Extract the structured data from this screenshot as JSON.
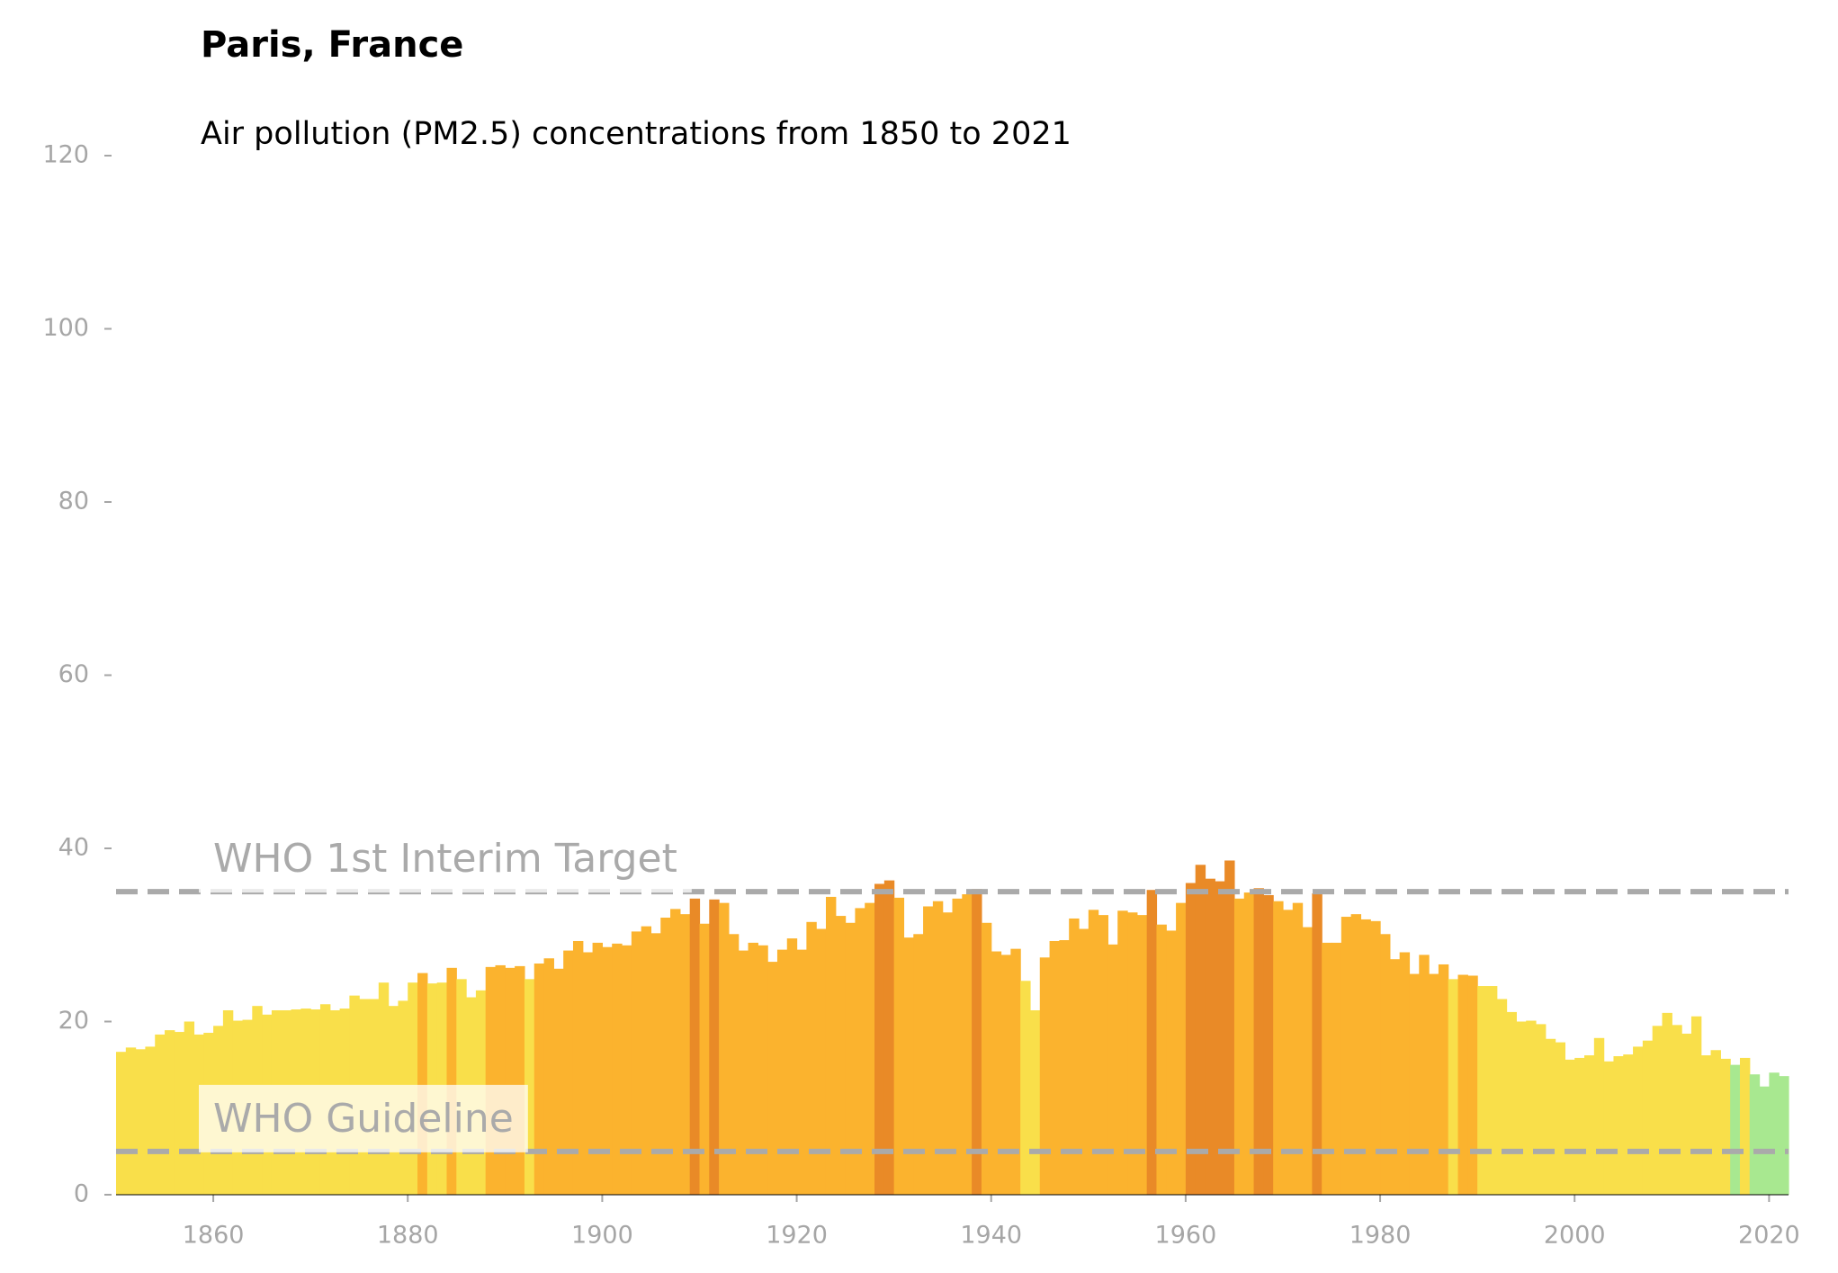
{
  "chart_data": {
    "type": "bar",
    "title": "Paris, France",
    "subtitle": "Air pollution (PM2.5) concentrations from 1850 to 2021",
    "x_start": 1850,
    "values": [
      16.5,
      17,
      16.8,
      17.1,
      18.5,
      19,
      18.8,
      20,
      18.5,
      18.7,
      19.5,
      21.3,
      20.1,
      20.2,
      21.8,
      20.8,
      21.3,
      21.3,
      21.4,
      21.5,
      21.4,
      22,
      21.3,
      21.5,
      23,
      22.6,
      22.6,
      24.5,
      21.8,
      22.4,
      24.5,
      25.6,
      24.4,
      24.5,
      26.2,
      24.9,
      22.8,
      23.6,
      26.3,
      26.5,
      26.2,
      26.4,
      24.9,
      26.7,
      27.3,
      26.1,
      28.2,
      29.3,
      28,
      29.1,
      28.6,
      29,
      28.8,
      30.4,
      31,
      30.2,
      32,
      33,
      32.4,
      34.2,
      31.3,
      34.1,
      33.7,
      30.1,
      28.2,
      29.1,
      28.8,
      26.9,
      28.3,
      29.6,
      28.3,
      31.5,
      30.7,
      34.4,
      32.2,
      31.4,
      33.1,
      33.7,
      35.9,
      36.3,
      34.3,
      29.7,
      30.1,
      33.3,
      33.9,
      32.6,
      34.2,
      34.7,
      35.3,
      31.4,
      28.1,
      27.7,
      28.4,
      24.7,
      21.3,
      27.4,
      29.3,
      29.4,
      31.9,
      30.7,
      32.9,
      32.3,
      28.9,
      32.8,
      32.6,
      32.3,
      35.2,
      31.2,
      30.5,
      33.7,
      36,
      38.1,
      36.5,
      36.2,
      38.6,
      34.2,
      34.9,
      35.4,
      34.6,
      33.9,
      32.9,
      33.7,
      30.9,
      34.8,
      29.1,
      29.1,
      32.1,
      32.4,
      31.8,
      31.6,
      30.1,
      27.2,
      28,
      25.5,
      27.7,
      25.5,
      26.6,
      24.9,
      25.4,
      25.3,
      24.1,
      24.1,
      22.6,
      21.1,
      20,
      20.1,
      19.7,
      18,
      17.6,
      15.6,
      15.8,
      16.1,
      18.1,
      15.4,
      16,
      16.2,
      17.1,
      17.8,
      19.5,
      21,
      19.6,
      18.6,
      20.6,
      16.1,
      16.7,
      15.7,
      15,
      15.8,
      13.9,
      12.5,
      14.1,
      13.7
    ],
    "colors": [
      "#f9df4a",
      "#f9df4a",
      "#f9df4a",
      "#f9df4a",
      "#f9df4a",
      "#f9df4a",
      "#f9df4a",
      "#f9df4a",
      "#f9df4a",
      "#f9df4a",
      "#f9df4a",
      "#f9df4a",
      "#f9df4a",
      "#f9df4a",
      "#f9df4a",
      "#f9df4a",
      "#f9df4a",
      "#f9df4a",
      "#f9df4a",
      "#f9df4a",
      "#f9df4a",
      "#f9df4a",
      "#f9df4a",
      "#f9df4a",
      "#f9df4a",
      "#f9df4a",
      "#f9df4a",
      "#f9df4a",
      "#f9df4a",
      "#f9df4a",
      "#f9df4a",
      "#fbb32e",
      "#f9df4a",
      "#f9df4a",
      "#fbb32e",
      "#f9df4a",
      "#f9df4a",
      "#f9df4a",
      "#fbb32e",
      "#fbb32e",
      "#fbb32e",
      "#fbb32e",
      "#f9df4a",
      "#fbb32e",
      "#fbb32e",
      "#fbb32e",
      "#fbb32e",
      "#fbb32e",
      "#fbb32e",
      "#fbb32e",
      "#fbb32e",
      "#fbb32e",
      "#fbb32e",
      "#fbb32e",
      "#fbb32e",
      "#fbb32e",
      "#fbb32e",
      "#fbb32e",
      "#fbb32e",
      "#e98a27",
      "#fbb32e",
      "#e98a27",
      "#fbb32e",
      "#fbb32e",
      "#fbb32e",
      "#fbb32e",
      "#fbb32e",
      "#fbb32e",
      "#fbb32e",
      "#fbb32e",
      "#fbb32e",
      "#fbb32e",
      "#fbb32e",
      "#fbb32e",
      "#fbb32e",
      "#fbb32e",
      "#fbb32e",
      "#fbb32e",
      "#e98a27",
      "#e98a27",
      "#fbb32e",
      "#fbb32e",
      "#fbb32e",
      "#fbb32e",
      "#fbb32e",
      "#fbb32e",
      "#fbb32e",
      "#fbb32e",
      "#e98a27",
      "#fbb32e",
      "#fbb32e",
      "#fbb32e",
      "#fbb32e",
      "#f9df4a",
      "#f9df4a",
      "#fbb32e",
      "#fbb32e",
      "#fbb32e",
      "#fbb32e",
      "#fbb32e",
      "#fbb32e",
      "#fbb32e",
      "#fbb32e",
      "#fbb32e",
      "#fbb32e",
      "#fbb32e",
      "#e98a27",
      "#fbb32e",
      "#fbb32e",
      "#fbb32e",
      "#e98a27",
      "#e98a27",
      "#e98a27",
      "#e98a27",
      "#e98a27",
      "#fbb32e",
      "#fbb32e",
      "#e98a27",
      "#e98a27",
      "#fbb32e",
      "#fbb32e",
      "#fbb32e",
      "#fbb32e",
      "#e98a27",
      "#fbb32e",
      "#fbb32e",
      "#fbb32e",
      "#fbb32e",
      "#fbb32e",
      "#fbb32e",
      "#fbb32e",
      "#fbb32e",
      "#fbb32e",
      "#fbb32e",
      "#fbb32e",
      "#fbb32e",
      "#fbb32e",
      "#f9df4a",
      "#fbb32e",
      "#fbb32e",
      "#f9df4a",
      "#f9df4a",
      "#f9df4a",
      "#f9df4a",
      "#f9df4a",
      "#f9df4a",
      "#f9df4a",
      "#f9df4a",
      "#f9df4a",
      "#f9df4a",
      "#f9df4a",
      "#f9df4a",
      "#f9df4a",
      "#f9df4a",
      "#f9df4a",
      "#f9df4a",
      "#f9df4a",
      "#f9df4a",
      "#f9df4a",
      "#f9df4a",
      "#f9df4a",
      "#f9df4a",
      "#f9df4a",
      "#f9df4a",
      "#f9df4a",
      "#f9df4a",
      "#a8e890",
      "#f9df4a",
      "#a8e890",
      "#a8e890",
      "#a8e890",
      "#a8e890"
    ],
    "xlim": [
      1850,
      2022
    ],
    "xticks": [
      1860,
      1880,
      1900,
      1920,
      1940,
      1960,
      1980,
      2000,
      2020
    ],
    "ylim": [
      0,
      120
    ],
    "yticks": [
      0,
      20,
      40,
      60,
      80,
      100,
      120
    ],
    "reference_lines": [
      {
        "label": "WHO 1st Interim Target",
        "value": 35
      },
      {
        "label": "WHO Guideline",
        "value": 5
      }
    ],
    "reference_color": "#aaaaaa"
  }
}
